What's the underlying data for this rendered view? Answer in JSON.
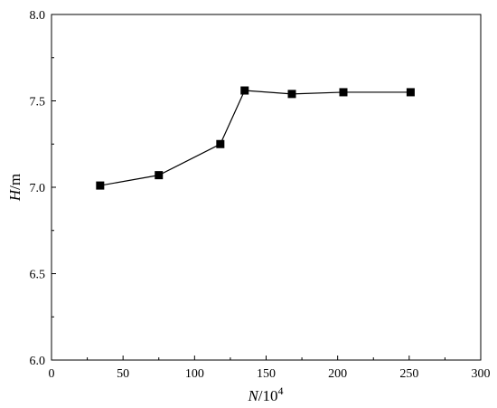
{
  "chart_data": {
    "type": "line",
    "x": [
      34,
      75,
      118,
      135,
      168,
      204,
      251
    ],
    "series": [
      {
        "values": [
          7.01,
          7.07,
          7.25,
          7.56,
          7.54,
          7.55,
          7.55
        ]
      }
    ],
    "xlim": [
      0,
      300
    ],
    "ylim": [
      6.0,
      8.0
    ],
    "xticks": [
      "0",
      "50",
      "100",
      "150",
      "200",
      "250",
      "300"
    ],
    "yticks": [
      "6.0",
      "6.5",
      "7.0",
      "7.5",
      "8.0"
    ],
    "xlabel": {
      "var": "N",
      "unit": "/10",
      "exp": "4"
    },
    "ylabel": {
      "var": "H",
      "unit": "/m"
    },
    "grid": false,
    "legend": "none",
    "marker": "square",
    "color": "#000000"
  }
}
